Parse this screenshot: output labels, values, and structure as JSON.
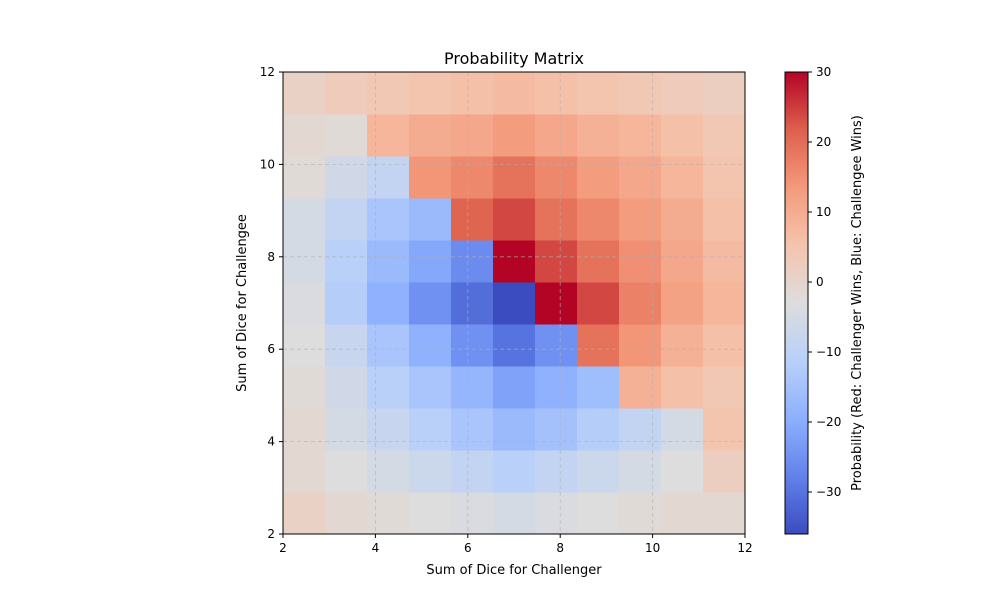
{
  "chart_data": {
    "type": "heatmap",
    "title": "Probability Matrix",
    "xlabel": "Sum of Dice for Challenger",
    "ylabel": "Sum of Dice for Challengee",
    "xlim": [
      2,
      12
    ],
    "ylim": [
      2,
      12
    ],
    "x_ticks": [
      2,
      4,
      6,
      8,
      10,
      12
    ],
    "y_ticks": [
      2,
      4,
      6,
      8,
      10,
      12
    ],
    "grid": true,
    "colormap": "coolwarm",
    "colorbar": {
      "label": "Probability (Red: Challenger Wins, Blue: Challengee Wins)",
      "min": -36,
      "max": 30,
      "ticks": [
        30,
        20,
        10,
        0,
        -10,
        -20,
        -30
      ]
    },
    "x_categories": [
      2,
      3,
      4,
      5,
      6,
      7,
      8,
      9,
      10,
      11,
      12
    ],
    "y_categories": [
      2,
      3,
      4,
      5,
      6,
      7,
      8,
      9,
      10,
      11,
      12
    ],
    "values_note_rows_bottom_to_top": "rows ordered by challengee sum 2..12",
    "values": [
      [
        1,
        -1,
        -2,
        -3,
        -4,
        -5,
        -4,
        -3,
        -2,
        -1,
        -1
      ],
      [
        -1,
        -3,
        -5,
        -7,
        -9,
        -11,
        -9,
        -7,
        -5,
        -3,
        2
      ],
      [
        -1,
        -5,
        -8,
        -11,
        -14,
        -17,
        -15,
        -12,
        -9,
        -5,
        5
      ],
      [
        -2,
        -6,
        -11,
        -14,
        -18,
        -22,
        -19,
        -16,
        9,
        6,
        4
      ],
      [
        -3,
        -8,
        -14,
        -19,
        -25,
        -30,
        -25,
        19,
        14,
        9,
        6
      ],
      [
        -4,
        -12,
        -19,
        -25,
        -31,
        -36,
        30,
        24,
        17,
        12,
        8
      ],
      [
        -5,
        -11,
        -17,
        -21,
        -26,
        30,
        24,
        19,
        15,
        11,
        7
      ],
      [
        -5,
        -9,
        -14,
        -17,
        21,
        24,
        19,
        16,
        13,
        10,
        6
      ],
      [
        -2,
        -6,
        -9,
        14,
        16,
        19,
        16,
        13,
        11,
        8,
        5
      ],
      [
        -1,
        -2,
        8,
        10,
        11,
        13,
        11,
        9,
        8,
        6,
        4
      ],
      [
        1,
        3,
        4,
        5,
        6,
        7,
        6,
        5,
        4,
        3,
        2
      ]
    ]
  }
}
